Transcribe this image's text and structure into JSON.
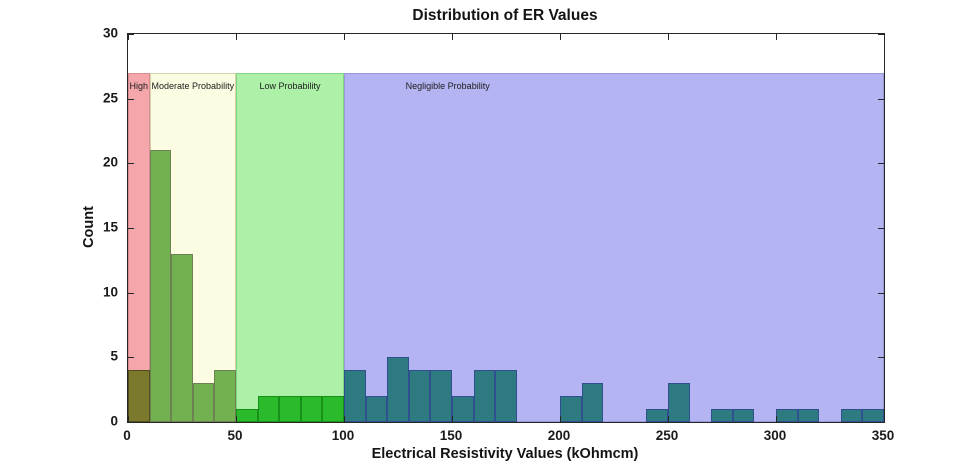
{
  "chart_data": {
    "type": "bar",
    "title": "Distribution of ER Values",
    "xlabel": "Electrical Resistivity Values (kOhmcm)",
    "ylabel": "Count",
    "xlim": [
      0,
      350
    ],
    "ylim": [
      0,
      30
    ],
    "x_ticks": [
      0,
      50,
      100,
      150,
      200,
      250,
      300,
      350
    ],
    "y_ticks": [
      0,
      5,
      10,
      15,
      20,
      25,
      30
    ],
    "grid": "off",
    "bin_width": 10,
    "bin_counts": [
      4,
      21,
      13,
      3,
      4,
      1,
      2,
      2,
      2,
      2,
      4,
      2,
      5,
      4,
      4,
      2,
      4,
      4,
      0,
      0,
      2,
      3,
      0,
      0,
      1,
      3,
      0,
      1,
      1,
      0,
      1,
      1,
      0,
      1,
      1
    ],
    "zone_top_count": 27,
    "zones": [
      {
        "label": "High",
        "x_start": 0,
        "x_end": 10,
        "label_x": 5,
        "color": "#f4a6ab",
        "edge": "#d68e93",
        "bar_fill": "#7b792c",
        "bar_edge": "#514f1d"
      },
      {
        "label": "Moderate Probability",
        "x_start": 10,
        "x_end": 50,
        "label_x": 30,
        "color": "#fcfce2",
        "edge": "#d4d4ac",
        "bar_fill": "#72b14f",
        "bar_edge": "#6f8054"
      },
      {
        "label": "Low Probability",
        "x_start": 50,
        "x_end": 100,
        "label_x": 75,
        "color": "#adf1a8",
        "edge": "#82d57f",
        "bar_fill": "#2aba2b",
        "bar_edge": "#169016"
      },
      {
        "label": "Negligible Probability",
        "x_start": 100,
        "x_end": 350,
        "label_x": 148,
        "color": "#b5b4f2",
        "edge": "#9a99d8",
        "bar_fill": "#2d7a81",
        "bar_edge": "#2f4f8e"
      }
    ],
    "frame_color": "#262626",
    "text_color": "#141414"
  }
}
